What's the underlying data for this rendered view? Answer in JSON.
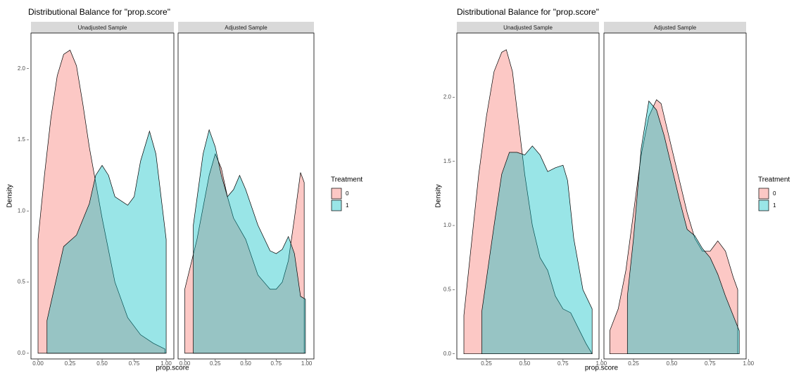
{
  "chart_data": [
    {
      "type": "density",
      "title": "Distributional Balance for \"prop.score\"",
      "x_label": "prop.score",
      "y_label": "Density",
      "legend_title": "Treatment",
      "series": [
        {
          "name": "0",
          "color": "#f8766d"
        },
        {
          "name": "1",
          "color": "#00bfc4"
        }
      ],
      "xlim": [
        -0.055,
        1.06
      ],
      "ylim": [
        -0.04,
        2.25
      ],
      "xticks": [
        {
          "value": 0,
          "label": "0.00"
        },
        {
          "value": 0.25,
          "label": "0.25"
        },
        {
          "value": 0.5,
          "label": "0.50"
        },
        {
          "value": 0.75,
          "label": "0.75"
        },
        {
          "value": 1,
          "label": "1.00"
        }
      ],
      "yticks": [
        {
          "value": 0,
          "label": "0.0"
        },
        {
          "value": 0.5,
          "label": "0.5"
        },
        {
          "value": 1,
          "label": "1.0"
        },
        {
          "value": 1.5,
          "label": "1.5"
        },
        {
          "value": 2,
          "label": "2.0"
        }
      ],
      "panels": [
        {
          "title": "Unadjusted Sample",
          "series": [
            {
              "x": [
                0.0,
                0.05,
                0.1,
                0.15,
                0.2,
                0.25,
                0.3,
                0.35,
                0.4,
                0.5,
                0.6,
                0.7,
                0.8,
                0.9,
                0.99
              ],
              "values": [
                0.8,
                1.25,
                1.65,
                1.95,
                2.1,
                2.13,
                2.02,
                1.75,
                1.45,
                0.95,
                0.5,
                0.25,
                0.13,
                0.07,
                0.03
              ]
            },
            {
              "x": [
                0.07,
                0.15,
                0.2,
                0.3,
                0.4,
                0.45,
                0.5,
                0.55,
                0.6,
                0.7,
                0.75,
                0.8,
                0.87,
                0.92,
                1.0
              ],
              "values": [
                0.23,
                0.55,
                0.75,
                0.83,
                1.05,
                1.25,
                1.32,
                1.25,
                1.1,
                1.04,
                1.1,
                1.35,
                1.56,
                1.4,
                0.8
              ]
            }
          ]
        },
        {
          "title": "Adjusted Sample",
          "series": [
            {
              "x": [
                0.0,
                0.1,
                0.2,
                0.25,
                0.3,
                0.35,
                0.4,
                0.5,
                0.6,
                0.7,
                0.75,
                0.8,
                0.85,
                0.9,
                0.95,
                0.98
              ],
              "values": [
                0.45,
                0.8,
                1.25,
                1.4,
                1.3,
                1.1,
                0.95,
                0.8,
                0.55,
                0.45,
                0.45,
                0.5,
                0.65,
                0.95,
                1.27,
                1.2
              ]
            },
            {
              "x": [
                0.07,
                0.15,
                0.2,
                0.25,
                0.3,
                0.35,
                0.4,
                0.45,
                0.5,
                0.6,
                0.7,
                0.75,
                0.8,
                0.85,
                0.9,
                0.95,
                0.99
              ],
              "values": [
                0.9,
                1.4,
                1.57,
                1.45,
                1.25,
                1.1,
                1.15,
                1.25,
                1.15,
                0.9,
                0.72,
                0.7,
                0.73,
                0.82,
                0.7,
                0.4,
                0.38
              ]
            }
          ]
        }
      ]
    },
    {
      "type": "density",
      "title": "Distributional Balance for \"prop.score\"",
      "x_label": "prop.score",
      "y_label": "Density",
      "legend_title": "Treatment",
      "series": [
        {
          "name": "0",
          "color": "#f8766d"
        },
        {
          "name": "1",
          "color": "#00bfc4"
        }
      ],
      "xlim": [
        0.057,
        0.985
      ],
      "ylim": [
        -0.04,
        2.5
      ],
      "xticks": [
        {
          "value": 0.25,
          "label": "0.25"
        },
        {
          "value": 0.5,
          "label": "0.50"
        },
        {
          "value": 0.75,
          "label": "0.75"
        },
        {
          "value": 1,
          "label": "1.00"
        }
      ],
      "yticks": [
        {
          "value": 0,
          "label": "0.0"
        },
        {
          "value": 0.5,
          "label": "0.5"
        },
        {
          "value": 1,
          "label": "1.0"
        },
        {
          "value": 1.5,
          "label": "1.5"
        },
        {
          "value": 2,
          "label": "2.0"
        }
      ],
      "panels": [
        {
          "title": "Unadjusted Sample",
          "series": [
            {
              "x": [
                0.103,
                0.2,
                0.25,
                0.3,
                0.35,
                0.38,
                0.42,
                0.45,
                0.5,
                0.55,
                0.6,
                0.65,
                0.7,
                0.75,
                0.8,
                0.85,
                0.9,
                0.94
              ],
              "values": [
                0.3,
                1.4,
                1.85,
                2.2,
                2.35,
                2.37,
                2.2,
                1.9,
                1.4,
                1.0,
                0.75,
                0.65,
                0.45,
                0.35,
                0.32,
                0.2,
                0.08,
                0.0
              ]
            },
            {
              "x": [
                0.22,
                0.3,
                0.35,
                0.4,
                0.45,
                0.5,
                0.55,
                0.6,
                0.65,
                0.7,
                0.75,
                0.78,
                0.82,
                0.88,
                0.94
              ],
              "values": [
                0.33,
                1.0,
                1.4,
                1.57,
                1.57,
                1.55,
                1.62,
                1.55,
                1.42,
                1.45,
                1.47,
                1.35,
                0.9,
                0.5,
                0.35
              ]
            }
          ]
        },
        {
          "title": "Adjusted Sample",
          "series": [
            {
              "x": [
                0.095,
                0.15,
                0.2,
                0.25,
                0.3,
                0.35,
                0.4,
                0.43,
                0.5,
                0.55,
                0.6,
                0.65,
                0.7,
                0.75,
                0.8,
                0.85,
                0.9,
                0.93
              ],
              "values": [
                0.18,
                0.35,
                0.65,
                1.1,
                1.55,
                1.85,
                1.98,
                1.95,
                1.6,
                1.35,
                1.1,
                0.9,
                0.8,
                0.8,
                0.88,
                0.8,
                0.6,
                0.5
              ]
            },
            {
              "x": [
                0.21,
                0.25,
                0.3,
                0.35,
                0.4,
                0.45,
                0.5,
                0.55,
                0.6,
                0.65,
                0.7,
                0.75,
                0.8,
                0.85,
                0.9,
                0.94
              ],
              "values": [
                0.45,
                0.9,
                1.6,
                1.97,
                1.9,
                1.7,
                1.45,
                1.2,
                0.97,
                0.92,
                0.82,
                0.75,
                0.62,
                0.45,
                0.3,
                0.18
              ]
            }
          ]
        }
      ]
    }
  ]
}
